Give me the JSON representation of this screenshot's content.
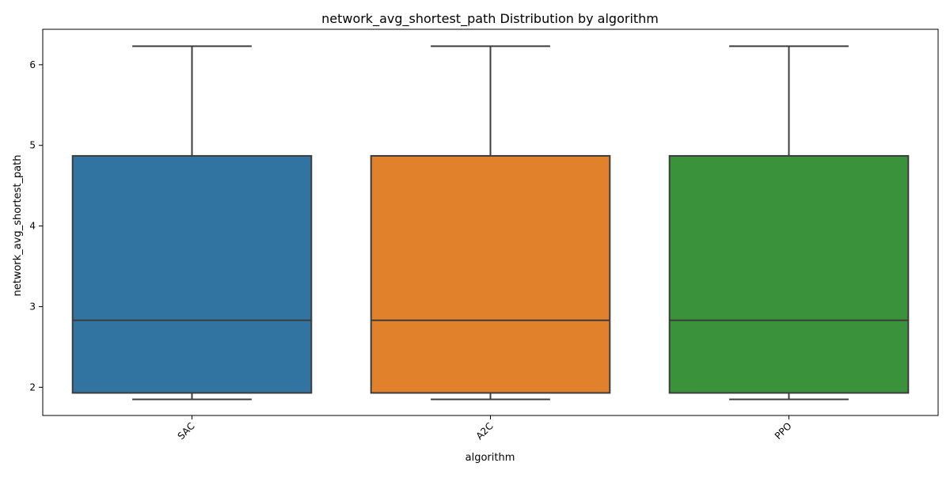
{
  "chart_data": {
    "type": "box",
    "title": "network_avg_shortest_path Distribution by algorithm",
    "xlabel": "algorithm",
    "ylabel": "network_avg_shortest_path",
    "categories": [
      "SAC",
      "A2C",
      "PPO"
    ],
    "colors": [
      "#3274a1",
      "#e1812c",
      "#3a923a"
    ],
    "line_color": "#3d3d3d",
    "ylim": [
      1.65,
      6.44
    ],
    "yticks": [
      2,
      3,
      4,
      5,
      6
    ],
    "ytick_labels": [
      "2",
      "3",
      "4",
      "5",
      "6"
    ],
    "xtick_rotation_deg": 45,
    "grid": false,
    "series": [
      {
        "category": "SAC",
        "whisker_low": 1.85,
        "q1": 1.93,
        "median": 2.83,
        "q3": 4.87,
        "whisker_high": 6.23
      },
      {
        "category": "A2C",
        "whisker_low": 1.85,
        "q1": 1.93,
        "median": 2.83,
        "q3": 4.87,
        "whisker_high": 6.23
      },
      {
        "category": "PPO",
        "whisker_low": 1.85,
        "q1": 1.93,
        "median": 2.83,
        "q3": 4.87,
        "whisker_high": 6.23
      }
    ]
  }
}
